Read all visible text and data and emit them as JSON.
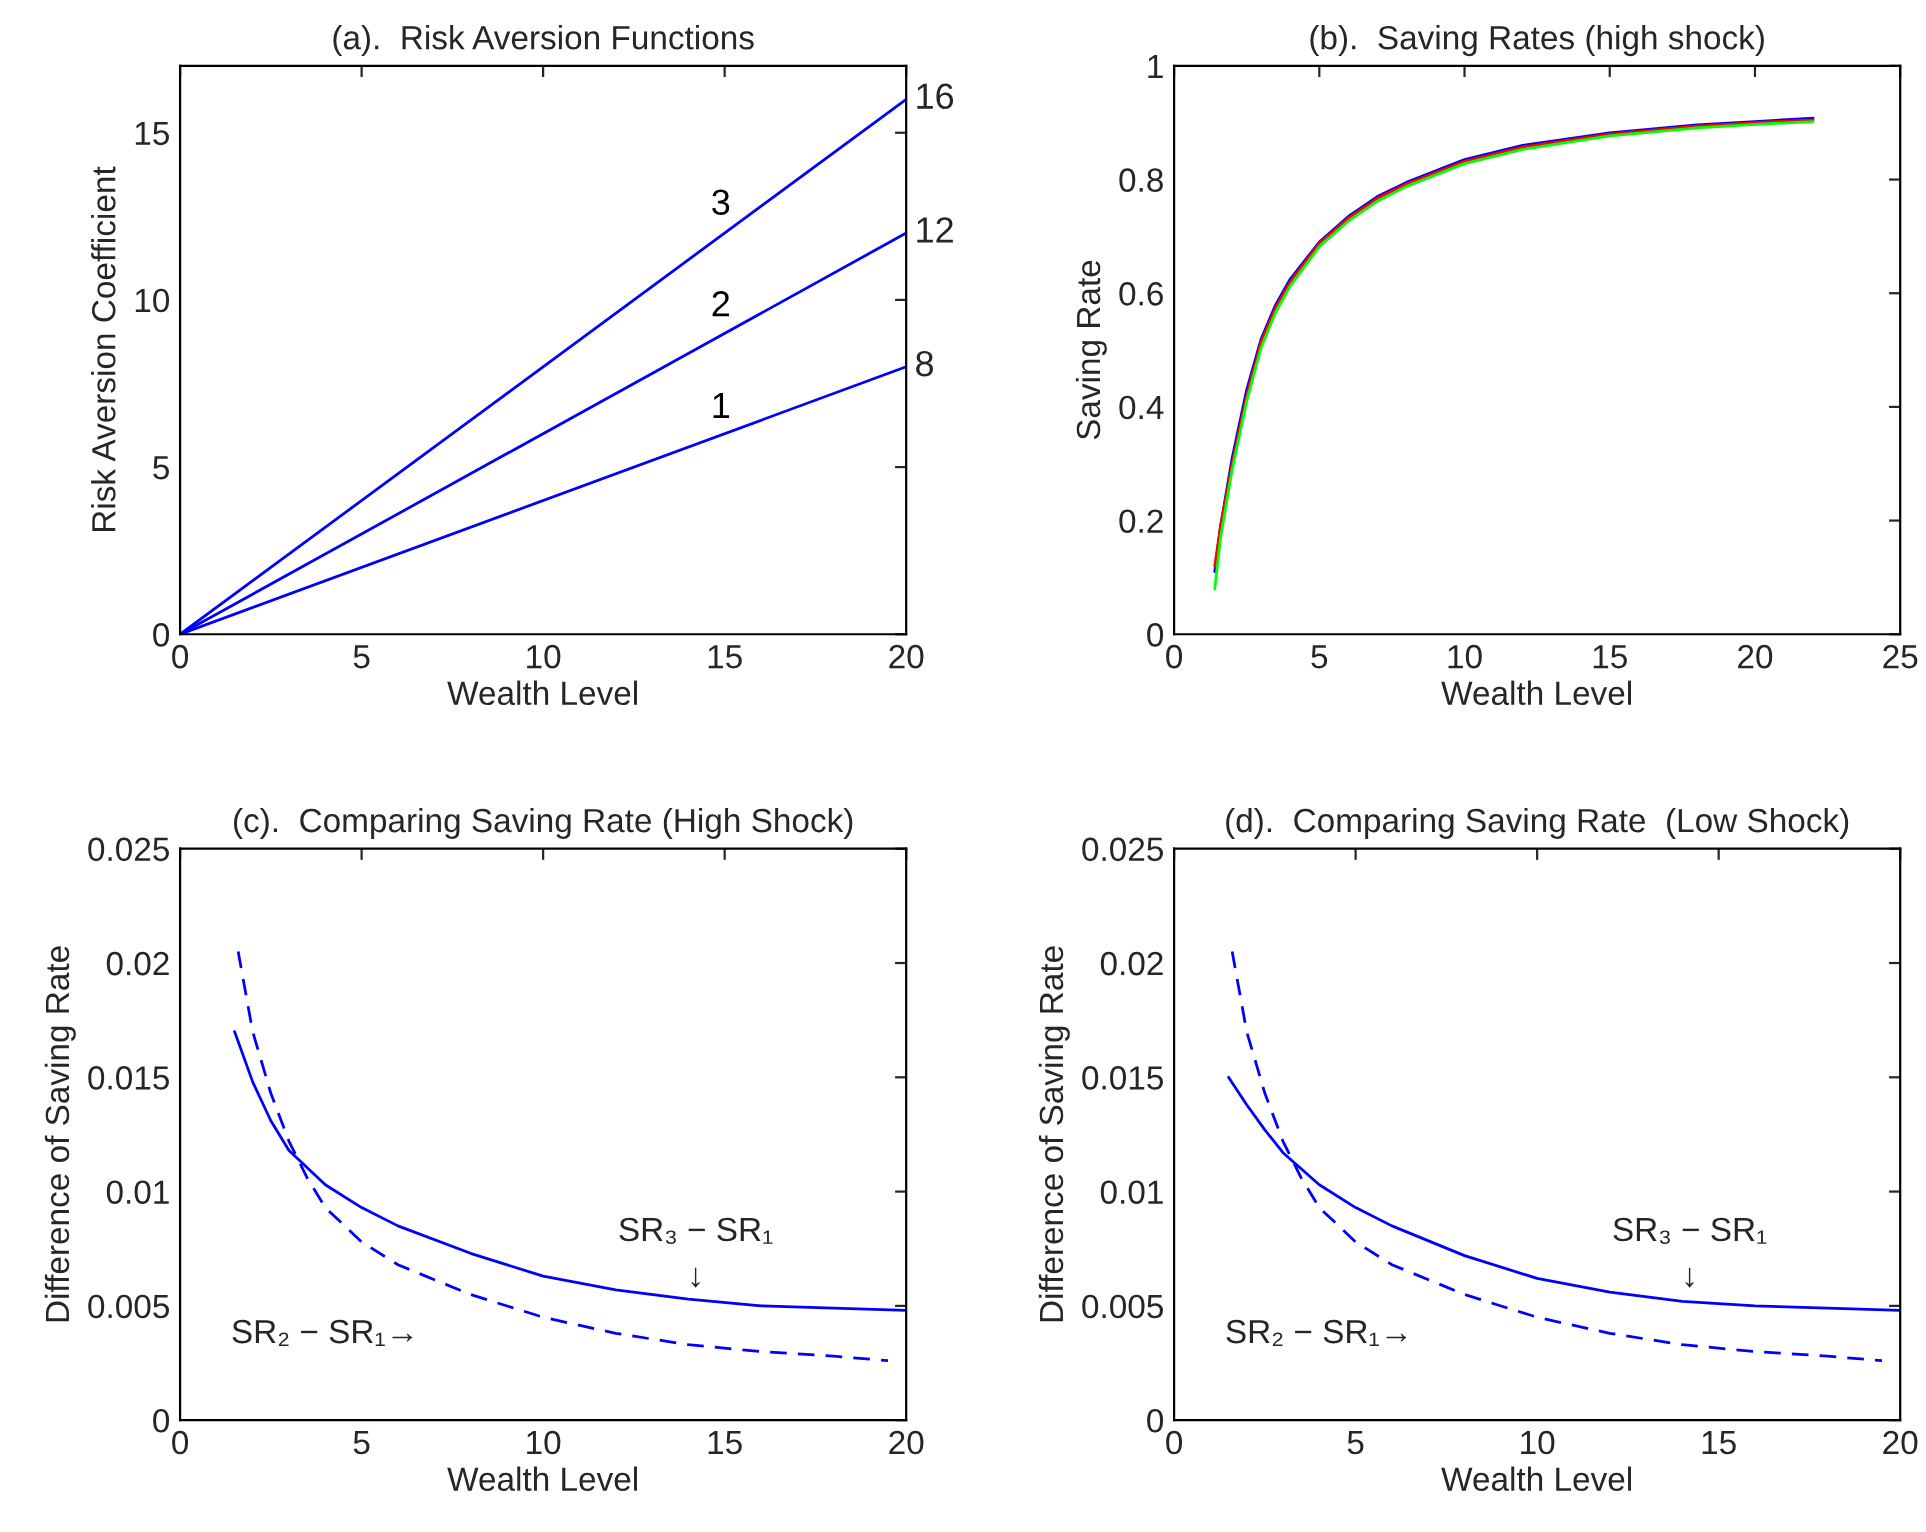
{
  "chart_data": [
    {
      "type": "line",
      "title": "(a).  Risk Aversion Functions",
      "xlabel": "Wealth Level",
      "ylabel": "Risk Aversion Coefficient",
      "xlim": [
        0,
        20
      ],
      "ylim": [
        0,
        17
      ],
      "xticks": [
        0,
        5,
        10,
        15,
        20
      ],
      "yticks": [
        0,
        5,
        10,
        15
      ],
      "grid": false,
      "legend": false,
      "series": [
        {
          "name": "1",
          "color": "#0000ff",
          "x": [
            0,
            20
          ],
          "values": [
            0,
            8
          ],
          "value_labels": [
            null,
            "8"
          ]
        },
        {
          "name": "2",
          "color": "#0000ff",
          "x": [
            0,
            20
          ],
          "values": [
            0,
            12
          ],
          "value_labels": [
            null,
            "12"
          ]
        },
        {
          "name": "3",
          "color": "#0000ff",
          "x": [
            0,
            20
          ],
          "values": [
            0,
            16
          ],
          "value_labels": [
            null,
            "16"
          ]
        }
      ]
    },
    {
      "type": "line",
      "title": "(b).  Saving Rates (high shock)",
      "xlabel": "Wealth Level",
      "ylabel": "Saving Rate",
      "xlim": [
        0,
        25
      ],
      "ylim": [
        0,
        1
      ],
      "xticks": [
        0,
        5,
        10,
        15,
        20,
        25
      ],
      "yticks": [
        0,
        0.2,
        0.4,
        0.6,
        0.8,
        1
      ],
      "grid": false,
      "legend": false,
      "series": [
        {
          "color": "#0000ff",
          "x": [
            1.4,
            1.6,
            2,
            2.5,
            3,
            3.5,
            4,
            5,
            6,
            7,
            8,
            10,
            12,
            15,
            18,
            20,
            22
          ],
          "values": [
            0.11,
            0.19,
            0.31,
            0.43,
            0.52,
            0.58,
            0.625,
            0.69,
            0.735,
            0.77,
            0.795,
            0.835,
            0.86,
            0.882,
            0.896,
            0.902,
            0.908
          ]
        },
        {
          "color": "#ff0000",
          "x": [
            1.4,
            1.6,
            2,
            2.5,
            3,
            3.5,
            4,
            5,
            6,
            7,
            8,
            10,
            12,
            15,
            18,
            20,
            22
          ],
          "values": [
            0.12,
            0.19,
            0.3,
            0.42,
            0.515,
            0.575,
            0.62,
            0.688,
            0.732,
            0.767,
            0.792,
            0.832,
            0.857,
            0.88,
            0.894,
            0.9,
            0.905
          ]
        },
        {
          "color": "#00ff00",
          "x": [
            1.4,
            1.6,
            2,
            2.5,
            3,
            3.5,
            4,
            5,
            6,
            7,
            8,
            10,
            12,
            15,
            18,
            20,
            22
          ],
          "values": [
            0.08,
            0.17,
            0.29,
            0.41,
            0.505,
            0.567,
            0.613,
            0.682,
            0.727,
            0.762,
            0.788,
            0.828,
            0.853,
            0.877,
            0.891,
            0.897,
            0.902
          ]
        }
      ]
    },
    {
      "type": "line",
      "title": "(c).  Comparing Saving Rate (High Shock)",
      "xlabel": "Wealth Level",
      "ylabel": "Difference of Saving Rate",
      "xlim": [
        0,
        20
      ],
      "ylim": [
        0,
        0.025
      ],
      "xticks": [
        0,
        5,
        10,
        15,
        20
      ],
      "yticks": [
        0,
        0.005,
        0.01,
        0.015,
        0.02,
        0.025
      ],
      "grid": false,
      "legend": false,
      "series": [
        {
          "color": "#0000ff",
          "line_style": "solid",
          "x": [
            1.5,
            2,
            2.5,
            3,
            4,
            5,
            6,
            8,
            10,
            12,
            14,
            16,
            18,
            20
          ],
          "values": [
            0.017,
            0.0148,
            0.0131,
            0.0118,
            0.0103,
            0.0093,
            0.0085,
            0.0073,
            0.0063,
            0.0057,
            0.0053,
            0.005,
            0.0049,
            0.0048
          ]
        },
        {
          "color": "#0000ff",
          "line_style": "dashed",
          "x": [
            1.6,
            2,
            2.5,
            3,
            3.5,
            4,
            5,
            6,
            8,
            10,
            12,
            14,
            16,
            18,
            19.5
          ],
          "values": [
            0.0205,
            0.017,
            0.0143,
            0.0122,
            0.0106,
            0.0093,
            0.0078,
            0.0068,
            0.0055,
            0.0045,
            0.0038,
            0.0033,
            0.003,
            0.0028,
            0.0026
          ]
        }
      ],
      "annotations": [
        {
          "text": "SR₃ − SR₁\n↓",
          "x": 14.2,
          "y": 0.0053
        },
        "SR₂ − SR₁→"
      ]
    },
    {
      "type": "line",
      "title": "(d).  Comparing Saving Rate  (Low Shock)",
      "xlabel": "Wealth Level",
      "ylabel": "Difference of Saving Rate",
      "xlim": [
        0,
        20
      ],
      "ylim": [
        0,
        0.025
      ],
      "xticks": [
        0,
        5,
        10,
        15,
        20
      ],
      "yticks": [
        0,
        0.005,
        0.01,
        0.015,
        0.02,
        0.025
      ],
      "grid": false,
      "legend": false,
      "series": [
        {
          "color": "#0000ff",
          "line_style": "solid",
          "x": [
            1.5,
            2,
            2.5,
            3,
            4,
            5,
            6,
            8,
            10,
            12,
            14,
            16,
            18,
            20
          ],
          "values": [
            0.015,
            0.0138,
            0.0127,
            0.0117,
            0.0103,
            0.0093,
            0.0085,
            0.0072,
            0.0062,
            0.0056,
            0.0052,
            0.005,
            0.0049,
            0.0048
          ]
        },
        {
          "color": "#0000ff",
          "line_style": "dashed",
          "x": [
            1.6,
            2,
            2.5,
            3,
            3.5,
            4,
            5,
            6,
            8,
            10,
            12,
            14,
            16,
            18,
            19.5
          ],
          "values": [
            0.0205,
            0.017,
            0.0143,
            0.0122,
            0.0106,
            0.0093,
            0.0078,
            0.0068,
            0.0055,
            0.0045,
            0.0038,
            0.0033,
            0.003,
            0.0028,
            0.0026
          ]
        }
      ],
      "annotations": [
        {
          "text": "SR₃ − SR₁\n↓",
          "x": 14.2,
          "y": 0.0053
        },
        "SR₂ − SR₁→"
      ]
    }
  ]
}
